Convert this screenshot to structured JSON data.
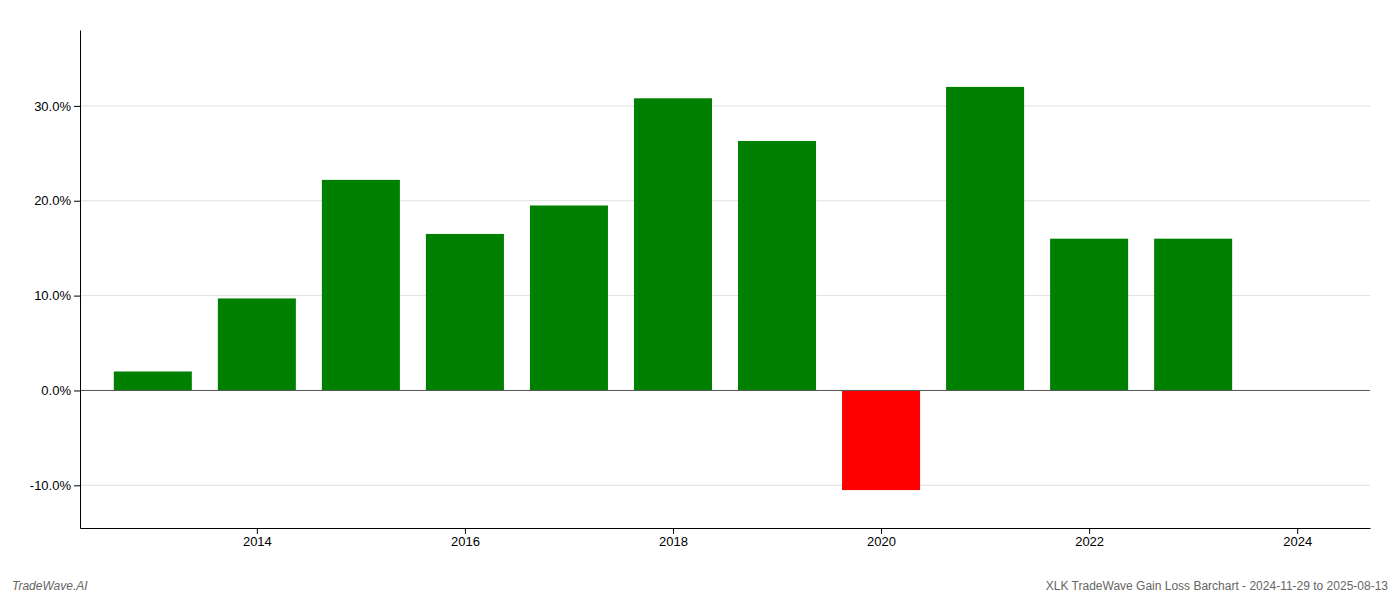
{
  "chart_data": {
    "type": "bar",
    "x": [
      2013,
      2014,
      2015,
      2016,
      2017,
      2018,
      2019,
      2020,
      2021,
      2022,
      2023
    ],
    "values": [
      0.02,
      0.097,
      0.222,
      0.165,
      0.195,
      0.308,
      0.263,
      -0.105,
      0.32,
      0.16,
      0.16
    ],
    "colors": [
      "#008000",
      "#008000",
      "#008000",
      "#008000",
      "#008000",
      "#008000",
      "#008000",
      "#ff0000",
      "#008000",
      "#008000",
      "#008000"
    ],
    "xlim": [
      2012.3,
      2024.7
    ],
    "xticks": [
      2014,
      2016,
      2018,
      2020,
      2022,
      2024
    ],
    "ylim": [
      -0.145,
      0.38
    ],
    "yticks": [
      {
        "value": -0.1,
        "label": "-10.0%"
      },
      {
        "value": 0.0,
        "label": "0.0%"
      },
      {
        "value": 0.1,
        "label": "10.0%"
      },
      {
        "value": 0.2,
        "label": "20.0%"
      },
      {
        "value": 0.3,
        "label": "30.0%"
      }
    ],
    "grid": true,
    "annotations": [
      "TradeWave.AI",
      "XLK TradeWave Gain Loss Barchart - 2024-11-29 to 2025-08-13"
    ]
  }
}
